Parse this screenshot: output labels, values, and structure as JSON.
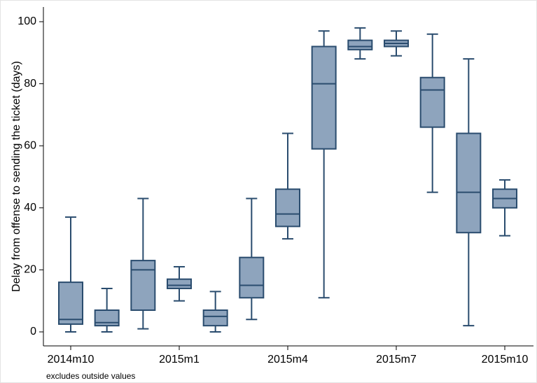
{
  "chart_data": {
    "type": "box",
    "y_label": "Delay from offense to sending the ticket (days)",
    "note": "excludes outside values",
    "categories": [
      "2014m10",
      null,
      null,
      "2015m1",
      null,
      null,
      "2015m4",
      null,
      null,
      "2015m7",
      null,
      null,
      "2015m10"
    ],
    "min": [
      0,
      0,
      1,
      10,
      0,
      4,
      30,
      11,
      88,
      89,
      45,
      2,
      31
    ],
    "q1": [
      2.5,
      2,
      7,
      14,
      2,
      11,
      34,
      59,
      91,
      92,
      66,
      32,
      40
    ],
    "median": [
      4,
      3,
      20,
      15,
      5,
      15,
      38,
      80,
      92,
      93,
      78,
      45,
      43
    ],
    "q3": [
      16,
      7,
      23,
      17,
      7,
      24,
      46,
      92,
      94,
      94,
      82,
      64,
      46
    ],
    "max": [
      37,
      14,
      43,
      21,
      13,
      43,
      64,
      97,
      98,
      97,
      96,
      88,
      49
    ],
    "color": "#8ea4bd",
    "line_color": "#2a4c6e",
    "ylim": [
      0,
      100
    ],
    "yticks": [
      0,
      20,
      40,
      60,
      80,
      100
    ],
    "grid": false
  }
}
